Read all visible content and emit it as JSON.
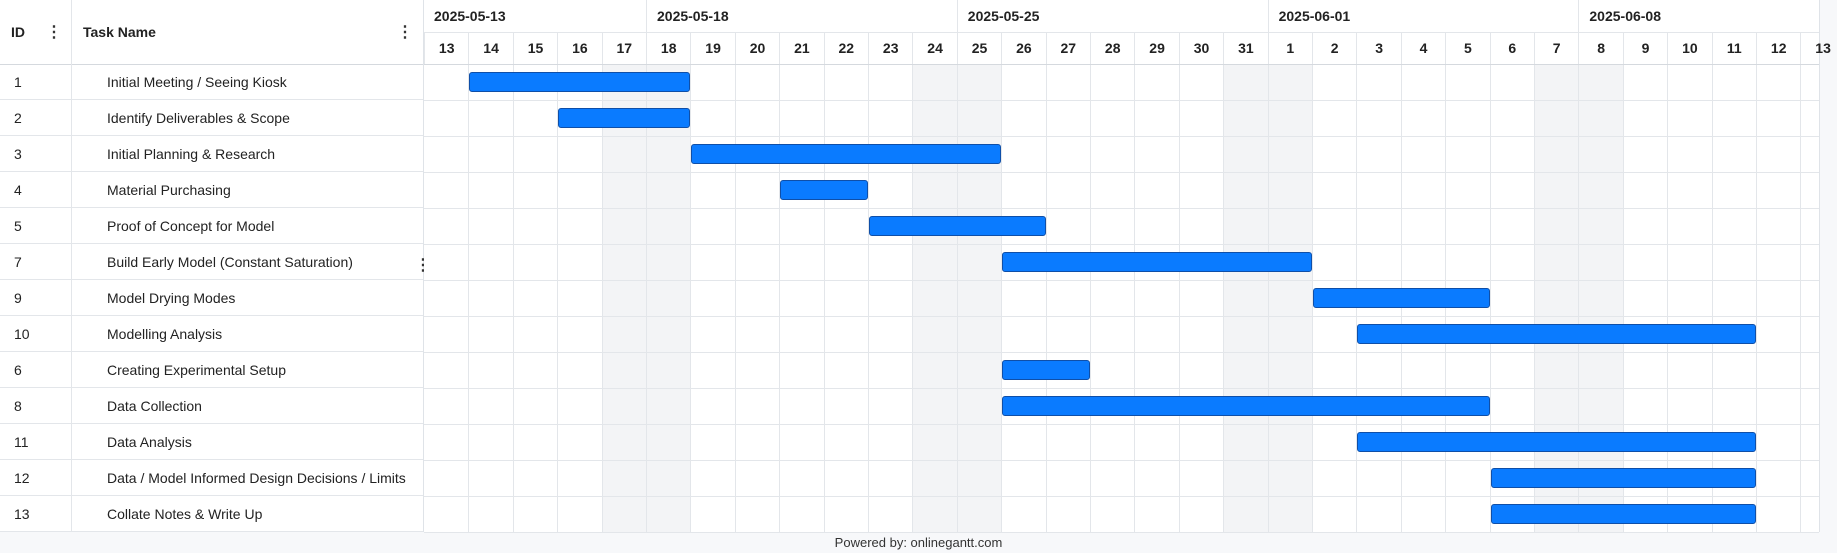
{
  "grid": {
    "id_header": "ID",
    "name_header": "Task Name"
  },
  "timeline": {
    "months": [
      "2025-05-13",
      "2025-05-18",
      "2025-05-25",
      "2025-06-01",
      "2025-06-08"
    ],
    "days": [
      "13",
      "14",
      "15",
      "16",
      "17",
      "18",
      "19",
      "20",
      "21",
      "22",
      "23",
      "24",
      "25",
      "26",
      "27",
      "28",
      "29",
      "30",
      "31",
      "1",
      "2",
      "3",
      "4",
      "5",
      "6",
      "7",
      "8",
      "9",
      "10",
      "11",
      "12",
      "13"
    ]
  },
  "chart_data": {
    "type": "gantt",
    "start_date": "2025-05-13",
    "end_date": "2025-06-13",
    "tasks": [
      {
        "id": "1",
        "name": "Initial Meeting / Seeing Kiosk",
        "start": "2025-05-14",
        "end": "2025-05-19"
      },
      {
        "id": "2",
        "name": "Identify Deliverables & Scope",
        "start": "2025-05-16",
        "end": "2025-05-19"
      },
      {
        "id": "3",
        "name": "Initial Planning & Research",
        "start": "2025-05-19",
        "end": "2025-05-26"
      },
      {
        "id": "4",
        "name": "Material Purchasing",
        "start": "2025-05-21",
        "end": "2025-05-23"
      },
      {
        "id": "5",
        "name": "Proof of Concept for Model",
        "start": "2025-05-23",
        "end": "2025-05-27"
      },
      {
        "id": "7",
        "name": "Build Early Model (Constant Saturation)",
        "start": "2025-05-26",
        "end": "2025-06-02"
      },
      {
        "id": "9",
        "name": "Model Drying Modes",
        "start": "2025-06-02",
        "end": "2025-06-06"
      },
      {
        "id": "10",
        "name": "Modelling Analysis",
        "start": "2025-06-03",
        "end": "2025-06-12"
      },
      {
        "id": "6",
        "name": "Creating Experimental Setup",
        "start": "2025-05-26",
        "end": "2025-05-28"
      },
      {
        "id": "8",
        "name": "Data Collection",
        "start": "2025-05-26",
        "end": "2025-06-06"
      },
      {
        "id": "11",
        "name": "Data Analysis",
        "start": "2025-06-03",
        "end": "2025-06-12"
      },
      {
        "id": "12",
        "name": "Data / Model Informed Design Decisions / Limits",
        "start": "2025-06-06",
        "end": "2025-06-12"
      },
      {
        "id": "13",
        "name": "Collate Notes & Write Up",
        "start": "2025-06-06",
        "end": "2025-06-12"
      }
    ],
    "weekend_days": [
      "2025-05-17",
      "2025-05-24",
      "2025-05-31",
      "2025-06-07"
    ],
    "bar_color": "#0a7bff"
  },
  "footer": {
    "text": "Powered by: onlinegantt.com"
  }
}
